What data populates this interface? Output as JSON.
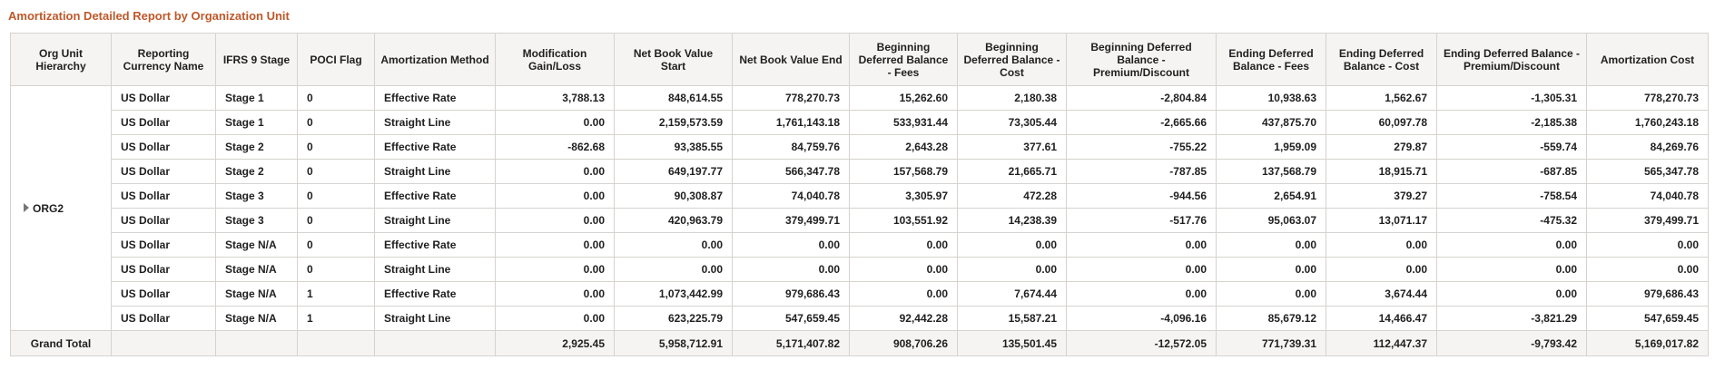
{
  "title": "Amortization Detailed Report by Organization Unit",
  "columns": [
    "Org Unit Hierarchy",
    "Reporting Currency Name",
    "IFRS 9 Stage",
    "POCI Flag",
    "Amortization Method",
    "Modification Gain/Loss",
    "Net Book Value Start",
    "Net Book Value End",
    "Beginning Deferred Balance - Fees",
    "Beginning Deferred Balance - Cost",
    "Beginning Deferred Balance - Premium/Discount",
    "Ending Deferred Balance - Fees",
    "Ending Deferred Balance - Cost",
    "Ending Deferred Balance - Premium/Discount",
    "Amortization Cost"
  ],
  "org_unit": "ORG2",
  "rows": [
    [
      "US Dollar",
      "Stage 1",
      "0",
      "Effective Rate",
      "3,788.13",
      "848,614.55",
      "778,270.73",
      "15,262.60",
      "2,180.38",
      "-2,804.84",
      "10,938.63",
      "1,562.67",
      "-1,305.31",
      "778,270.73"
    ],
    [
      "US Dollar",
      "Stage 1",
      "0",
      "Straight Line",
      "0.00",
      "2,159,573.59",
      "1,761,143.18",
      "533,931.44",
      "73,305.44",
      "-2,665.66",
      "437,875.70",
      "60,097.78",
      "-2,185.38",
      "1,760,243.18"
    ],
    [
      "US Dollar",
      "Stage 2",
      "0",
      "Effective Rate",
      "-862.68",
      "93,385.55",
      "84,759.76",
      "2,643.28",
      "377.61",
      "-755.22",
      "1,959.09",
      "279.87",
      "-559.74",
      "84,269.76"
    ],
    [
      "US Dollar",
      "Stage 2",
      "0",
      "Straight Line",
      "0.00",
      "649,197.77",
      "566,347.78",
      "157,568.79",
      "21,665.71",
      "-787.85",
      "137,568.79",
      "18,915.71",
      "-687.85",
      "565,347.78"
    ],
    [
      "US Dollar",
      "Stage 3",
      "0",
      "Effective Rate",
      "0.00",
      "90,308.87",
      "74,040.78",
      "3,305.97",
      "472.28",
      "-944.56",
      "2,654.91",
      "379.27",
      "-758.54",
      "74,040.78"
    ],
    [
      "US Dollar",
      "Stage 3",
      "0",
      "Straight Line",
      "0.00",
      "420,963.79",
      "379,499.71",
      "103,551.92",
      "14,238.39",
      "-517.76",
      "95,063.07",
      "13,071.17",
      "-475.32",
      "379,499.71"
    ],
    [
      "US Dollar",
      "Stage N/A",
      "0",
      "Effective Rate",
      "0.00",
      "0.00",
      "0.00",
      "0.00",
      "0.00",
      "0.00",
      "0.00",
      "0.00",
      "0.00",
      "0.00"
    ],
    [
      "US Dollar",
      "Stage N/A",
      "0",
      "Straight Line",
      "0.00",
      "0.00",
      "0.00",
      "0.00",
      "0.00",
      "0.00",
      "0.00",
      "0.00",
      "0.00",
      "0.00"
    ],
    [
      "US Dollar",
      "Stage N/A",
      "1",
      "Effective Rate",
      "0.00",
      "1,073,442.99",
      "979,686.43",
      "0.00",
      "7,674.44",
      "0.00",
      "0.00",
      "3,674.44",
      "0.00",
      "979,686.43"
    ],
    [
      "US Dollar",
      "Stage N/A",
      "1",
      "Straight Line",
      "0.00",
      "623,225.79",
      "547,659.45",
      "92,442.28",
      "15,587.21",
      "-4,096.16",
      "85,679.12",
      "14,466.47",
      "-3,821.29",
      "547,659.45"
    ]
  ],
  "grand_total": {
    "label": "Grand Total",
    "values": [
      "2,925.45",
      "5,958,712.91",
      "5,171,407.82",
      "908,706.26",
      "135,501.45",
      "-12,572.05",
      "771,739.31",
      "112,447.37",
      "-9,793.42",
      "5,169,017.82"
    ]
  }
}
